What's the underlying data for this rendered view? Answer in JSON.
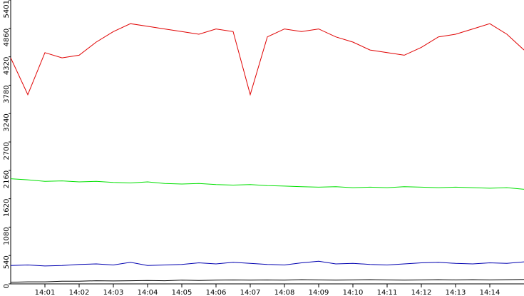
{
  "chart_data": {
    "type": "line",
    "x": [
      840,
      840.5,
      841,
      841.5,
      842,
      842.5,
      843,
      843.5,
      844,
      844.5,
      845,
      845.5,
      846,
      846.5,
      847,
      847.5,
      848,
      848.5,
      849,
      849.5,
      850,
      850.5,
      851,
      851.5,
      852,
      852.5,
      853,
      853.5,
      854,
      854.5,
      855
    ],
    "series": [
      {
        "color": "#e00000",
        "values": [
          4300,
          3600,
          4400,
          4300,
          4350,
          4600,
          4800,
          4950,
          4900,
          4850,
          4800,
          4750,
          4850,
          4800,
          3600,
          4700,
          4850,
          4800,
          4850,
          4700,
          4600,
          4450,
          4400,
          4350,
          4500,
          4700,
          4750,
          4850,
          4950,
          4750,
          4450
        ]
      },
      {
        "color": "#00e000",
        "values": [
          2000,
          1980,
          1950,
          1960,
          1940,
          1950,
          1930,
          1920,
          1940,
          1910,
          1900,
          1910,
          1890,
          1880,
          1890,
          1870,
          1860,
          1850,
          1840,
          1850,
          1830,
          1840,
          1830,
          1850,
          1840,
          1830,
          1840,
          1830,
          1820,
          1830,
          1800
        ]
      },
      {
        "color": "#0000b0",
        "values": [
          350,
          360,
          340,
          350,
          370,
          380,
          360,
          410,
          350,
          360,
          370,
          400,
          380,
          410,
          390,
          370,
          360,
          400,
          430,
          380,
          390,
          370,
          360,
          380,
          400,
          410,
          390,
          380,
          400,
          390,
          420
        ]
      },
      {
        "color": "#000000",
        "values": [
          30,
          40,
          40,
          50,
          50,
          60,
          55,
          60,
          65,
          60,
          70,
          65,
          70,
          75,
          70,
          75,
          70,
          80,
          75,
          70,
          75,
          80,
          75,
          70,
          75,
          80,
          75,
          80,
          75,
          80,
          85
        ]
      }
    ],
    "xlim": [
      840,
      855
    ],
    "xticks": [
      {
        "value": 841,
        "label": "14:01"
      },
      {
        "value": 842,
        "label": "14:02"
      },
      {
        "value": 843,
        "label": "14:03"
      },
      {
        "value": 844,
        "label": "14:04"
      },
      {
        "value": 845,
        "label": "14:05"
      },
      {
        "value": 846,
        "label": "14:06"
      },
      {
        "value": 847,
        "label": "14:07"
      },
      {
        "value": 848,
        "label": "14:08"
      },
      {
        "value": 849,
        "label": "14:09"
      },
      {
        "value": 850,
        "label": "14:10"
      },
      {
        "value": 851,
        "label": "14:11"
      },
      {
        "value": 852,
        "label": "14:12"
      },
      {
        "value": 853,
        "label": "14:13"
      },
      {
        "value": 854,
        "label": "14:14"
      }
    ],
    "ylim": [
      0,
      5401
    ],
    "yticks": [
      0,
      540,
      1080,
      1620,
      2160,
      2700,
      3240,
      3780,
      4320,
      4860,
      5401
    ]
  }
}
